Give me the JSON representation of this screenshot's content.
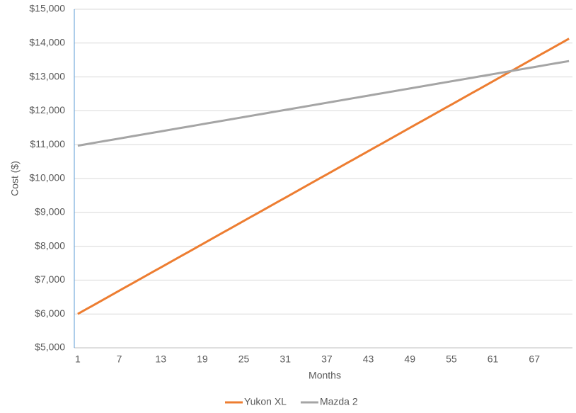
{
  "chart_data": {
    "type": "line",
    "x_label": "Months",
    "y_label": "Cost ($)",
    "x": [
      1,
      2,
      3,
      4,
      5,
      6,
      7,
      8,
      9,
      10,
      11,
      12,
      13,
      14,
      15,
      16,
      17,
      18,
      19,
      20,
      21,
      22,
      23,
      24,
      25,
      26,
      27,
      28,
      29,
      30,
      31,
      32,
      33,
      34,
      35,
      36,
      37,
      38,
      39,
      40,
      41,
      42,
      43,
      44,
      45,
      46,
      47,
      48,
      49,
      50,
      51,
      52,
      53,
      54,
      55,
      56,
      57,
      58,
      59,
      60,
      61,
      62,
      63,
      64,
      65,
      66,
      67,
      68,
      69,
      70,
      71,
      72
    ],
    "series": [
      {
        "name": "Yukon XL",
        "color": "#ed7d31",
        "values": [
          6000,
          6115,
          6229,
          6344,
          6458,
          6573,
          6687,
          6802,
          6916,
          7031,
          7145,
          7260,
          7374,
          7489,
          7603,
          7718,
          7832,
          7947,
          8061,
          8176,
          8290,
          8405,
          8519,
          8634,
          8748,
          8863,
          8977,
          9092,
          9206,
          9321,
          9435,
          9550,
          9664,
          9779,
          9893,
          10008,
          10122,
          10237,
          10351,
          10466,
          10580,
          10695,
          10809,
          10924,
          11038,
          11153,
          11267,
          11382,
          11496,
          11611,
          11725,
          11840,
          11954,
          12069,
          12183,
          12298,
          12412,
          12527,
          12641,
          12756,
          12870,
          12985,
          13099,
          13214,
          13328,
          13443,
          13557,
          13672,
          13786,
          13901,
          14015,
          14130
        ]
      },
      {
        "name": "Mazda 2",
        "color": "#a5a5a5",
        "values": [
          10970,
          11005,
          11040,
          11076,
          11111,
          11146,
          11181,
          11216,
          11252,
          11287,
          11322,
          11357,
          11392,
          11428,
          11463,
          11498,
          11533,
          11568,
          11604,
          11639,
          11674,
          11709,
          11744,
          11780,
          11815,
          11850,
          11885,
          11920,
          11956,
          11991,
          12026,
          12061,
          12096,
          12132,
          12167,
          12202,
          12237,
          12272,
          12308,
          12343,
          12378,
          12413,
          12448,
          12484,
          12519,
          12554,
          12589,
          12624,
          12660,
          12695,
          12730,
          12765,
          12800,
          12836,
          12871,
          12906,
          12941,
          12976,
          13012,
          13047,
          13082,
          13117,
          13152,
          13188,
          13223,
          13258,
          13293,
          13328,
          13364,
          13399,
          13434,
          13469
        ]
      }
    ],
    "xlim": [
      0.5,
      72.5
    ],
    "xticks": [
      1,
      7,
      13,
      19,
      25,
      31,
      37,
      43,
      49,
      55,
      61,
      67
    ],
    "ylim": [
      5000,
      15000
    ],
    "yticks": [
      {
        "value": 5000,
        "label": "$5,000"
      },
      {
        "value": 6000,
        "label": "$6,000"
      },
      {
        "value": 7000,
        "label": "$7,000"
      },
      {
        "value": 8000,
        "label": "$8,000"
      },
      {
        "value": 9000,
        "label": "$9,000"
      },
      {
        "value": 10000,
        "label": "$10,000"
      },
      {
        "value": 11000,
        "label": "$11,000"
      },
      {
        "value": 12000,
        "label": "$12,000"
      },
      {
        "value": 13000,
        "label": "$13,000"
      },
      {
        "value": 14000,
        "label": "$14,000"
      },
      {
        "value": 15000,
        "label": "$15,000"
      }
    ],
    "grid": true,
    "legend": "bottom"
  }
}
